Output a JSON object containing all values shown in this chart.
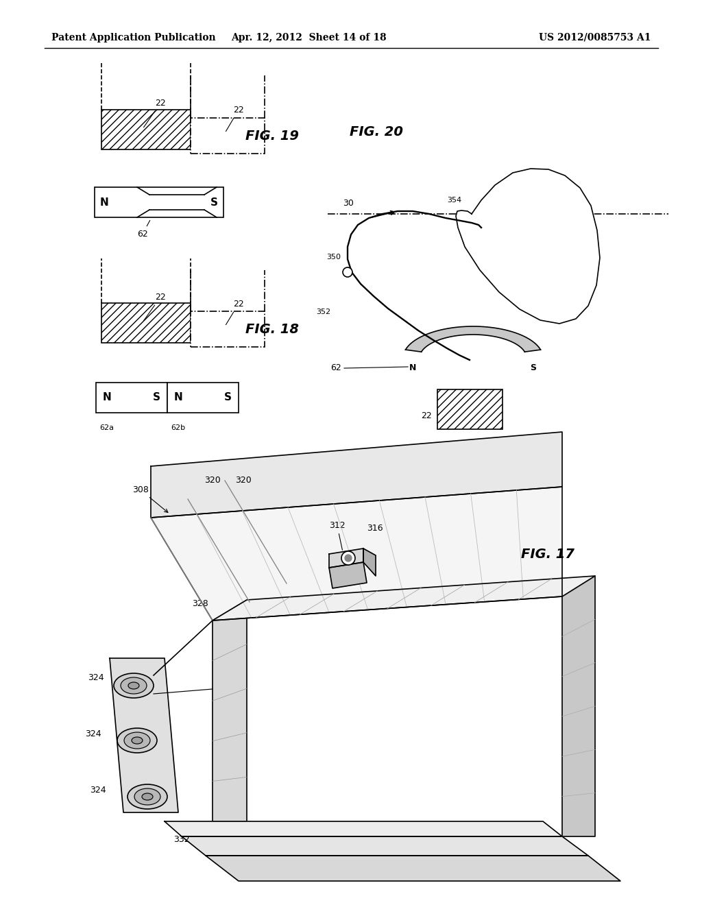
{
  "bg_color": "#ffffff",
  "header_left": "Patent Application Publication",
  "header_center": "Apr. 12, 2012  Sheet 14 of 18",
  "header_right": "US 2012/0085753 A1",
  "fig17_label": "FIG. 17",
  "fig18_label": "FIG. 18",
  "fig19_label": "FIG. 19",
  "fig20_label": "FIG. 20",
  "hatch_pattern": "///",
  "line_color": "#000000"
}
